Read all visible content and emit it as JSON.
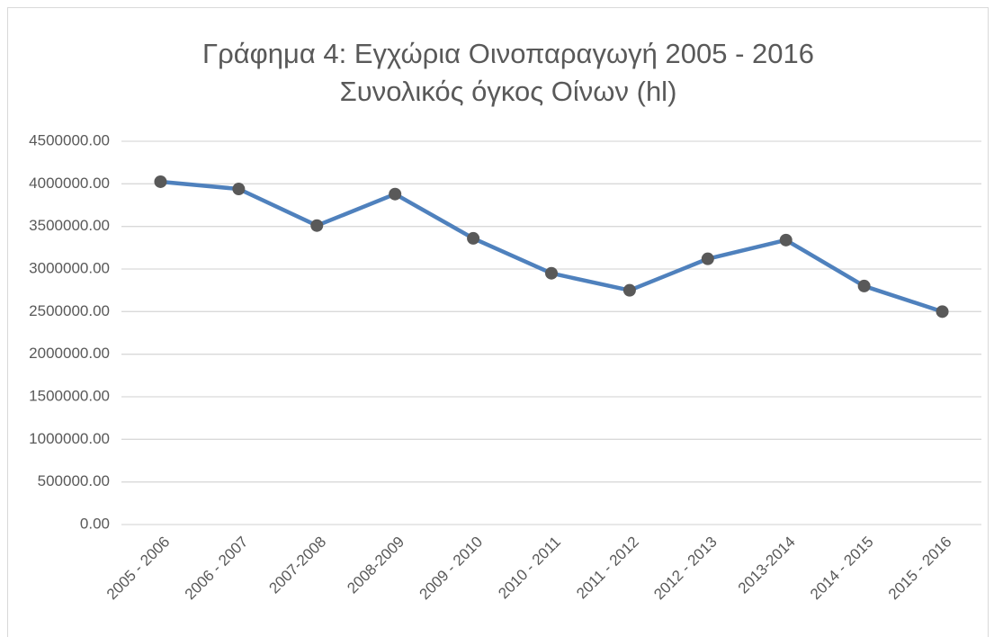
{
  "chart_data": {
    "type": "line",
    "title": "Γράφημα 4: Εγχώρια Οινοπαραγωγή 2005 - 2016",
    "subtitle": "Συνολικός όγκος Οίνων (hl)",
    "categories": [
      "2005 - 2006",
      "2006 - 2007",
      "2007-2008",
      "2008-2009",
      "2009 - 2010",
      "2010 - 2011",
      "2011 - 2012",
      "2012 - 2013",
      "2013-2014",
      "2014 - 2015",
      "2015 - 2016"
    ],
    "values": [
      4025000,
      3940000,
      3510000,
      3880000,
      3360000,
      2950000,
      2750000,
      3120000,
      3340000,
      2800000,
      2500000
    ],
    "color": "#4f81bd",
    "marker_color": "#595959",
    "ylim": [
      0,
      4500000
    ],
    "yticks": [
      {
        "value": 0,
        "label": "0.00"
      },
      {
        "value": 500000,
        "label": "500000.00"
      },
      {
        "value": 1000000,
        "label": "1000000.00"
      },
      {
        "value": 1500000,
        "label": "1500000.00"
      },
      {
        "value": 2000000,
        "label": "2000000.00"
      },
      {
        "value": 2500000,
        "label": "2500000.00"
      },
      {
        "value": 3000000,
        "label": "3000000.00"
      },
      {
        "value": 3500000,
        "label": "3500000.00"
      },
      {
        "value": 4000000,
        "label": "4000000.00"
      },
      {
        "value": 4500000,
        "label": "4500000.00"
      }
    ],
    "grid": true
  }
}
